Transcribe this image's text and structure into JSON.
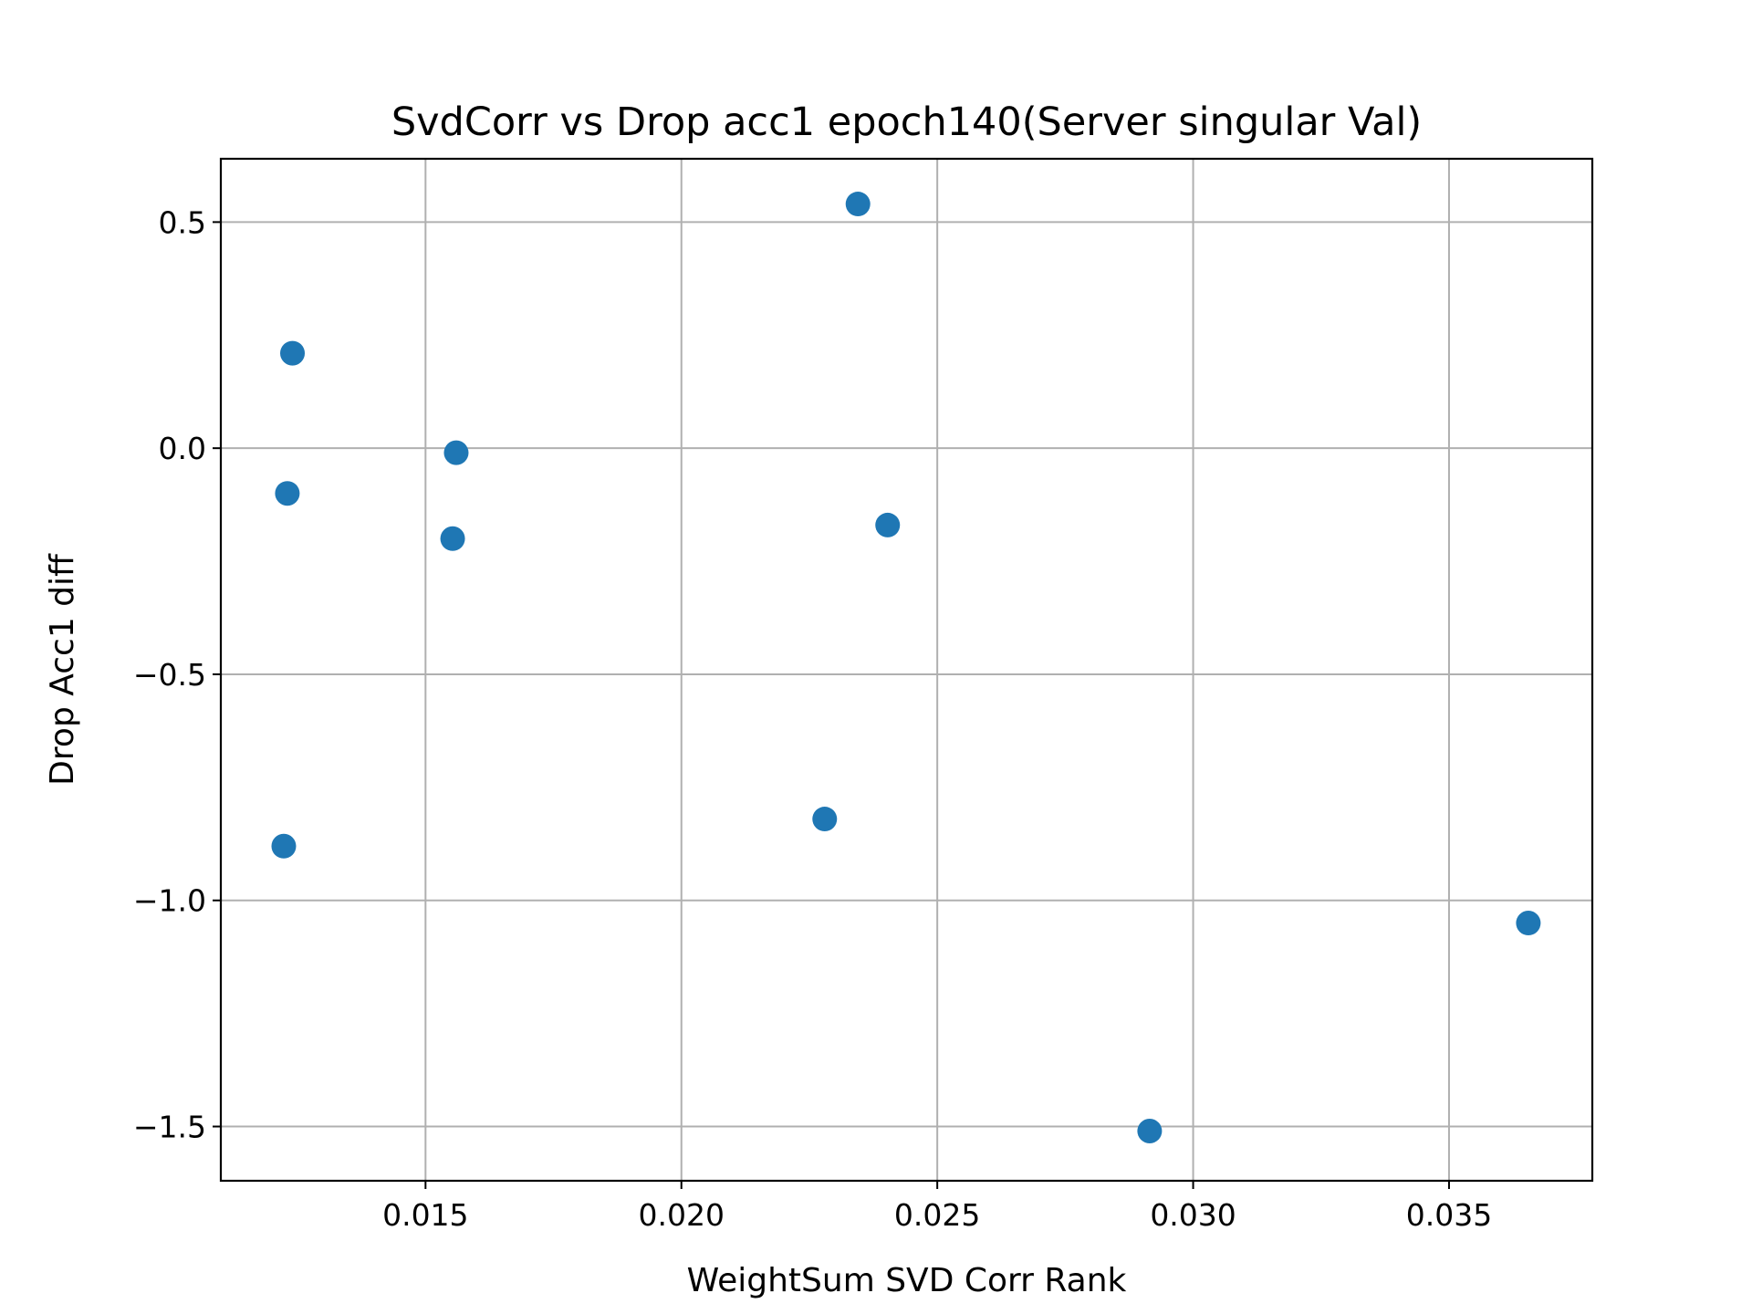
{
  "chart_data": {
    "type": "scatter",
    "title": "SvdCorr vs Drop acc1 epoch140(Server singular Val)",
    "xlabel": "WeightSum SVD Corr Rank",
    "ylabel": "Drop Acc1 diff",
    "xlim": [
      0.011,
      0.0378
    ],
    "ylim": [
      -1.62,
      0.64
    ],
    "x_ticks": [
      0.015,
      0.02,
      0.025,
      0.03,
      0.035
    ],
    "x_tick_labels": [
      "0.015",
      "0.020",
      "0.025",
      "0.030",
      "0.035"
    ],
    "y_ticks": [
      0.5,
      0.0,
      -0.5,
      -1.0,
      -1.5
    ],
    "y_tick_labels": [
      "0.5",
      "0.0",
      "−0.5",
      "−1.0",
      "−1.5"
    ],
    "grid": true,
    "marker_color": "#1f77b4",
    "series": [
      {
        "points": [
          {
            "x": 0.02345,
            "y": 0.54
          },
          {
            "x": 0.0124,
            "y": 0.21
          },
          {
            "x": 0.0156,
            "y": -0.01
          },
          {
            "x": 0.0123,
            "y": -0.1
          },
          {
            "x": 0.01553,
            "y": -0.2
          },
          {
            "x": 0.02403,
            "y": -0.17
          },
          {
            "x": 0.01223,
            "y": -0.88
          },
          {
            "x": 0.0228,
            "y": -0.82
          },
          {
            "x": 0.03655,
            "y": -1.05
          },
          {
            "x": 0.02915,
            "y": -1.51
          }
        ]
      }
    ]
  }
}
